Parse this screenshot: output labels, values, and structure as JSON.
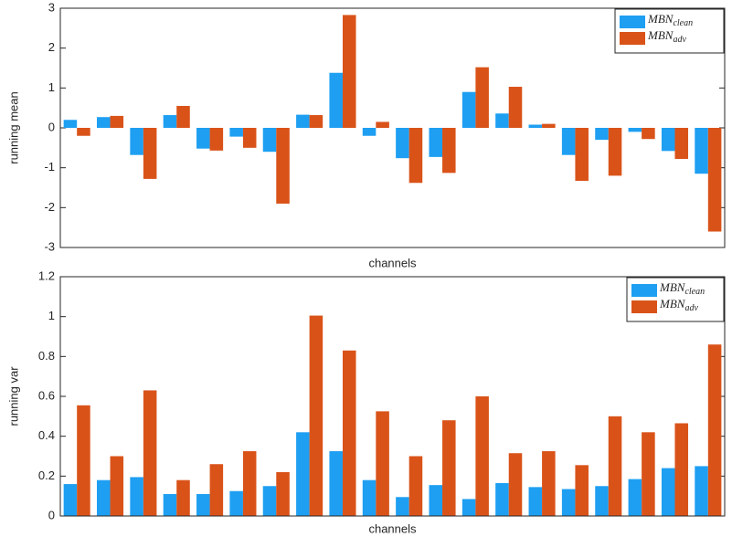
{
  "chart_data": [
    {
      "type": "bar",
      "ylabel": "running mean",
      "xlabel": "channels",
      "categories": [
        null,
        null,
        null,
        null,
        null,
        null,
        null,
        null,
        null,
        null,
        null,
        null,
        null,
        null,
        null,
        null,
        null,
        null,
        null,
        null
      ],
      "series": [
        {
          "name": "MBNclean",
          "color": "#1e9ff2",
          "values": [
            0.2,
            0.27,
            -0.68,
            0.32,
            -0.52,
            -0.22,
            -0.6,
            0.33,
            1.38,
            -0.2,
            -0.76,
            -0.73,
            0.9,
            0.36,
            0.08,
            -0.68,
            -0.3,
            -0.1,
            -0.58,
            -1.15
          ]
        },
        {
          "name": "MBNadv",
          "color": "#d95319",
          "values": [
            -0.2,
            0.3,
            -1.28,
            0.55,
            -0.57,
            -0.5,
            -1.9,
            0.32,
            2.83,
            0.15,
            -1.38,
            -1.13,
            1.52,
            1.03,
            0.1,
            -1.33,
            -1.2,
            -0.28,
            -0.78,
            -2.6
          ]
        }
      ],
      "ylim": [
        -3,
        3
      ],
      "yticks": [
        -3,
        -2,
        -1,
        0,
        1,
        2,
        3
      ],
      "grid": false,
      "legend": "upper right"
    },
    {
      "type": "bar",
      "ylabel": "running var",
      "xlabel": "channels",
      "categories": [
        null,
        null,
        null,
        null,
        null,
        null,
        null,
        null,
        null,
        null,
        null,
        null,
        null,
        null,
        null,
        null,
        null,
        null,
        null,
        null
      ],
      "series": [
        {
          "name": "MBNclean",
          "color": "#1e9ff2",
          "values": [
            0.16,
            0.18,
            0.195,
            0.11,
            0.11,
            0.125,
            0.15,
            0.42,
            0.325,
            0.18,
            0.095,
            0.155,
            0.085,
            0.165,
            0.145,
            0.135,
            0.15,
            0.185,
            0.24,
            0.25
          ]
        },
        {
          "name": "MBNadv",
          "color": "#d95319",
          "values": [
            0.555,
            0.3,
            0.63,
            0.18,
            0.26,
            0.325,
            0.22,
            1.005,
            0.83,
            0.525,
            0.3,
            0.48,
            0.6,
            0.315,
            0.325,
            0.255,
            0.5,
            0.42,
            0.465,
            0.86
          ]
        }
      ],
      "ylim": [
        0,
        1.2
      ],
      "yticks": [
        0,
        0.2,
        0.4,
        0.6,
        0.8,
        1,
        1.2
      ],
      "grid": false,
      "legend": "upper right"
    }
  ]
}
